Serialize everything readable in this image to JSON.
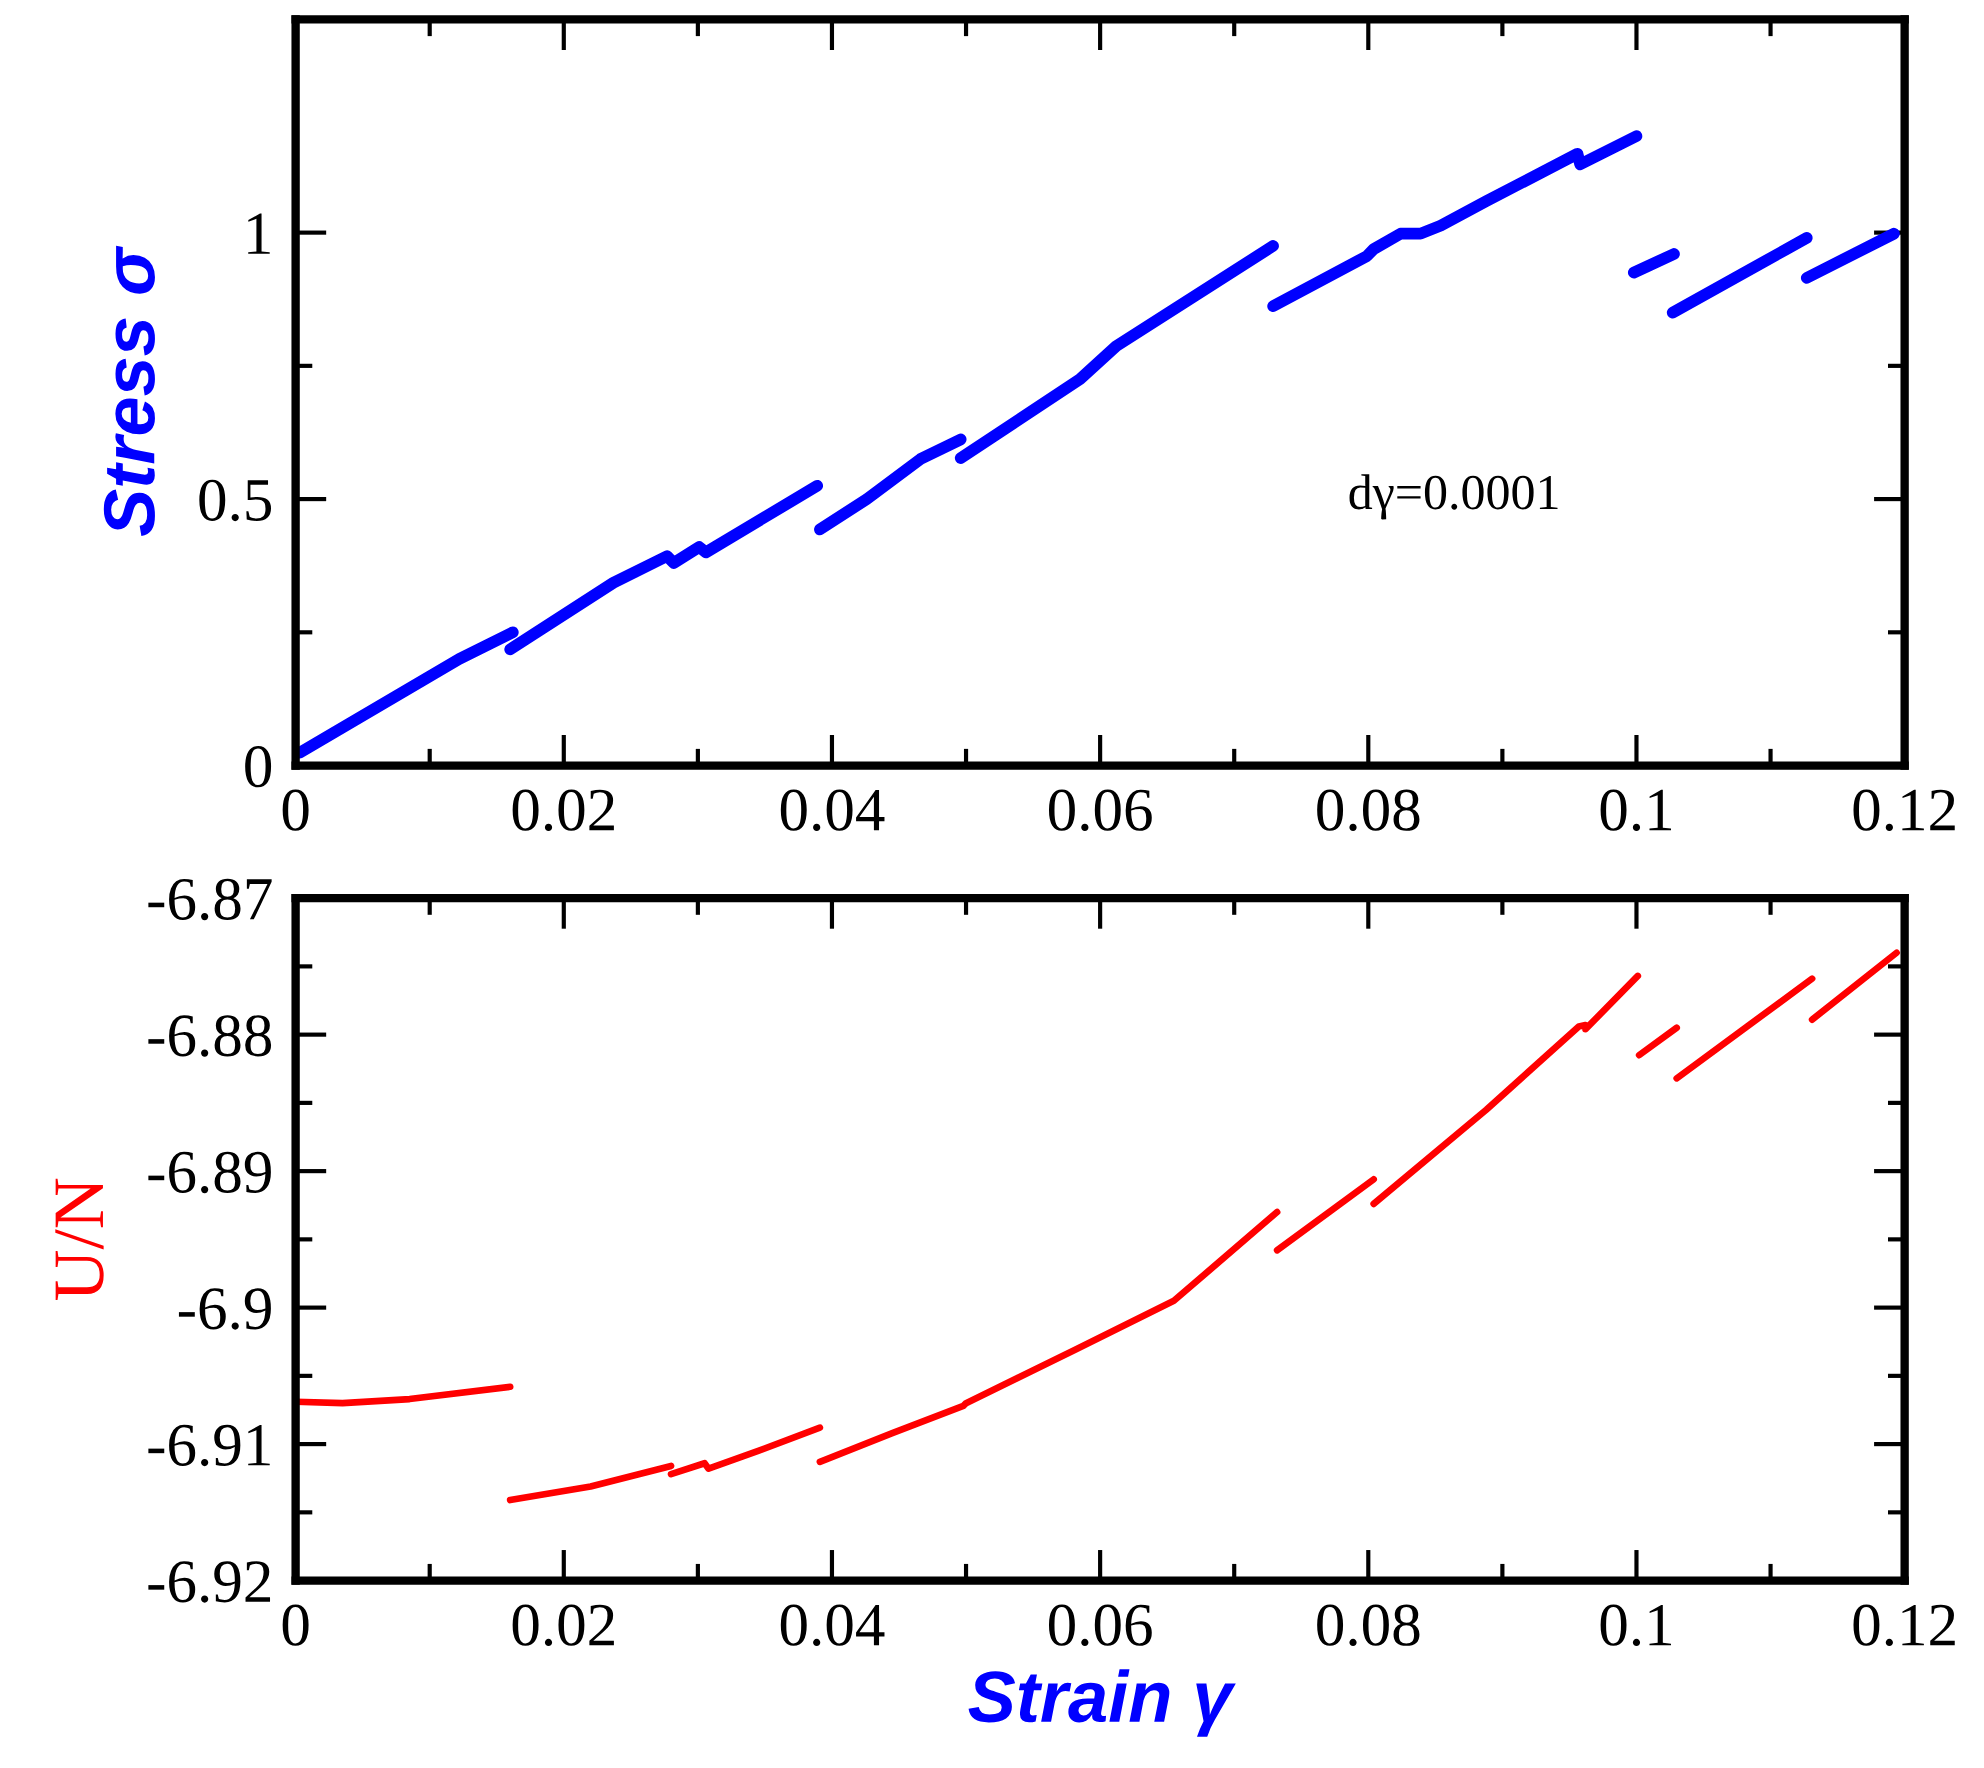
{
  "chart_data": [
    {
      "type": "line",
      "ylabel": "Stress σ",
      "annotations": [
        "dγ=0.0001"
      ],
      "xlim": [
        0,
        0.12
      ],
      "xticks": [
        0,
        0.02,
        0.04,
        0.06,
        0.08,
        0.1,
        0.12
      ],
      "ylim": [
        0,
        1.4
      ],
      "yticks": [
        0,
        0.5,
        1
      ],
      "marker": "none",
      "line_style": "solid",
      "grid": false,
      "legend": false,
      "series": [
        {
          "color": "#0000ff",
          "x": [
            0.0003,
            0.0122,
            0.0162,
            null,
            0.016,
            0.0237,
            0.0277,
            0.0282,
            0.0301,
            0.0306,
            0.0389,
            null,
            0.0391,
            0.0426,
            0.0466,
            0.0496,
            null,
            0.0496,
            0.0585,
            0.0612,
            0.0729,
            null,
            0.0729,
            0.0799,
            0.0804,
            0.0824,
            0.0839,
            0.0854,
            0.0888,
            0.0956,
            0.0958,
            0.1,
            null,
            0.0998,
            0.1028,
            null,
            0.1027,
            0.1127,
            null,
            0.1127,
            0.1192
          ],
          "values": [
            0.024,
            0.2,
            0.25,
            null,
            0.218,
            0.343,
            0.393,
            0.38,
            0.41,
            0.4,
            0.525,
            null,
            0.443,
            0.5,
            0.575,
            0.612,
            null,
            0.577,
            0.725,
            0.787,
            0.975,
            null,
            0.862,
            0.956,
            0.969,
            0.998,
            0.998,
            1.013,
            1.059,
            1.148,
            1.128,
            1.181,
            null,
            0.925,
            0.96,
            null,
            0.85,
            0.99,
            null,
            0.915,
            0.998
          ]
        }
      ]
    },
    {
      "type": "line",
      "xlabel": "Strain γ",
      "ylabel": "U/N",
      "xlim": [
        0,
        0.12
      ],
      "xticks": [
        0,
        0.02,
        0.04,
        0.06,
        0.08,
        0.1,
        0.12
      ],
      "ylim": [
        -6.92,
        -6.87
      ],
      "yticks": [
        -6.92,
        -6.91,
        -6.9,
        -6.89,
        -6.88,
        -6.87
      ],
      "marker": "none",
      "line_style": "solid",
      "grid": false,
      "legend": false,
      "series": [
        {
          "color": "#ff0000",
          "x": [
            0,
            0.0035,
            0.0085,
            0.016,
            null,
            0.016,
            0.022,
            0.028,
            null,
            0.028,
            0.0305,
            0.0308,
            0.0345,
            0.0391,
            null,
            0.0391,
            0.0445,
            0.0498,
            0.05,
            0.0581,
            0.0655,
            0.0732,
            null,
            0.0732,
            0.0804,
            null,
            0.0804,
            0.0888,
            0.0957,
            0.0962,
            0.0962,
            0.1001,
            null,
            0.1002,
            0.103,
            null,
            0.103,
            0.1131,
            null,
            0.1131,
            0.1194
          ],
          "values": [
            -6.9069,
            -6.907,
            -6.9067,
            -6.9058,
            null,
            -6.9141,
            -6.9131,
            -6.9116,
            null,
            -6.9122,
            -6.9114,
            -6.9118,
            -6.9105,
            -6.9088,
            null,
            -6.9113,
            -6.9092,
            -6.9072,
            -6.907,
            -6.9031,
            -6.8995,
            -6.893,
            null,
            -6.8958,
            -6.8906,
            null,
            -6.8924,
            -6.8855,
            -6.8794,
            -6.8793,
            -6.8796,
            -6.8757,
            null,
            -6.8815,
            -6.8795,
            null,
            -6.8832,
            -6.8759,
            null,
            -6.8789,
            -6.874
          ]
        }
      ]
    }
  ]
}
